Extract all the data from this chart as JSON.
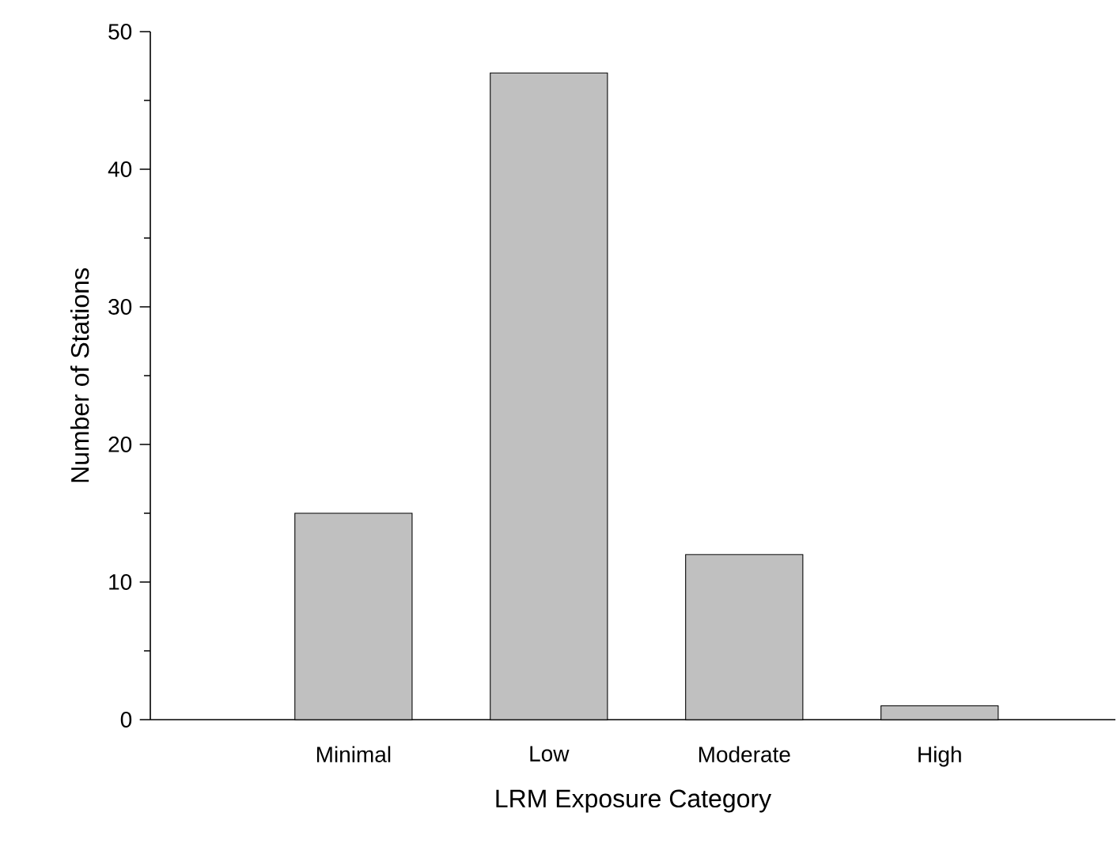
{
  "chart_data": {
    "type": "bar",
    "xlabel": "LRM Exposure Category",
    "ylabel": "Number of Stations",
    "categories": [
      "Minimal",
      "Low",
      "Moderate",
      "High"
    ],
    "values": [
      15,
      47,
      12,
      1
    ],
    "color": "#c0c0c0",
    "ylim": [
      0,
      50
    ],
    "yticks": [
      0,
      10,
      20,
      30,
      40,
      50
    ]
  }
}
